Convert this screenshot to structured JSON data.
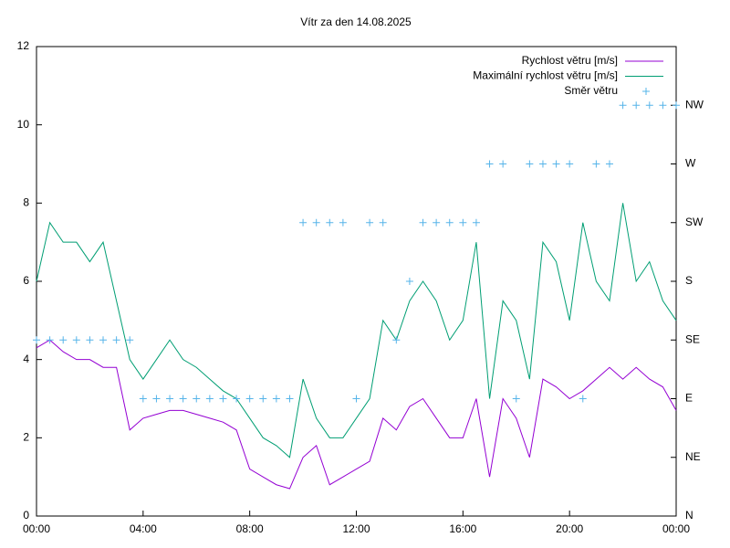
{
  "chart_data": {
    "type": "line",
    "title": "Vítr za den 14.08.2025",
    "x": [
      0,
      0.5,
      1,
      1.5,
      2,
      2.5,
      3,
      3.5,
      4,
      4.5,
      5,
      5.5,
      6,
      6.5,
      7,
      7.5,
      8,
      8.5,
      9,
      9.5,
      10,
      10.5,
      11,
      11.5,
      12,
      12.5,
      13,
      13.5,
      14,
      14.5,
      15,
      15.5,
      16,
      16.5,
      17,
      17.5,
      18,
      18.5,
      19,
      19.5,
      20,
      20.5,
      21,
      21.5,
      22,
      22.5,
      23,
      23.5,
      24
    ],
    "series": [
      {
        "name": "Rychlost větru [m/s]",
        "color": "#9400d3",
        "style": "line",
        "values": [
          4.3,
          4.5,
          4.2,
          4.0,
          4.0,
          3.8,
          3.8,
          2.2,
          2.5,
          2.6,
          2.7,
          2.7,
          2.6,
          2.5,
          2.4,
          2.2,
          1.2,
          1.0,
          0.8,
          0.7,
          1.5,
          1.8,
          0.8,
          1.0,
          1.2,
          1.4,
          2.5,
          2.2,
          2.8,
          3.0,
          2.5,
          2.0,
          2.0,
          3.0,
          1.0,
          3.0,
          2.5,
          1.5,
          3.5,
          3.3,
          3.0,
          3.2,
          3.5,
          3.8,
          3.5,
          3.8,
          3.5,
          3.3,
          2.7
        ]
      },
      {
        "name": "Maximální rychlost větru [m/s]",
        "color": "#009e73",
        "style": "line",
        "values": [
          6.0,
          7.5,
          7.0,
          7.0,
          6.5,
          7.0,
          5.5,
          4.0,
          3.5,
          4.0,
          4.5,
          4.0,
          3.8,
          3.5,
          3.2,
          3.0,
          2.5,
          2.0,
          1.8,
          1.5,
          3.5,
          2.5,
          2.0,
          2.0,
          2.5,
          3.0,
          5.0,
          4.5,
          5.5,
          6.0,
          5.5,
          4.5,
          5.0,
          7.0,
          3.0,
          5.5,
          5.0,
          3.5,
          7.0,
          6.5,
          5.0,
          7.5,
          6.0,
          5.5,
          8.0,
          6.0,
          6.5,
          5.5,
          5.0
        ]
      },
      {
        "name": "Směr větru",
        "color": "#56b4e9",
        "style": "points",
        "axis": "y2",
        "values": [
          135,
          135,
          135,
          135,
          135,
          135,
          135,
          135,
          90,
          90,
          90,
          90,
          90,
          90,
          90,
          90,
          90,
          90,
          90,
          90,
          225,
          225,
          225,
          225,
          90,
          225,
          225,
          135,
          180,
          225,
          225,
          225,
          225,
          225,
          270,
          270,
          90,
          270,
          270,
          270,
          270,
          90,
          270,
          270,
          315,
          315,
          315,
          315,
          315
        ]
      }
    ],
    "xlim": [
      0,
      24
    ],
    "xticks": [
      {
        "value": 0,
        "label": "00:00"
      },
      {
        "value": 4,
        "label": "04:00"
      },
      {
        "value": 8,
        "label": "08:00"
      },
      {
        "value": 12,
        "label": "12:00"
      },
      {
        "value": 16,
        "label": "16:00"
      },
      {
        "value": 20,
        "label": "20:00"
      },
      {
        "value": 24,
        "label": "00:00"
      }
    ],
    "ylim": [
      0,
      12
    ],
    "yticks": [
      0,
      2,
      4,
      6,
      8,
      10,
      12
    ],
    "y2lim": [
      0,
      360
    ],
    "y2ticks": [
      {
        "value": 0,
        "label": "N"
      },
      {
        "value": 45,
        "label": "NE"
      },
      {
        "value": 90,
        "label": "E"
      },
      {
        "value": 135,
        "label": "SE"
      },
      {
        "value": 180,
        "label": "S"
      },
      {
        "value": 225,
        "label": "SW"
      },
      {
        "value": 270,
        "label": "W"
      },
      {
        "value": 315,
        "label": "NW"
      }
    ],
    "legend": "top-right",
    "grid": false
  }
}
